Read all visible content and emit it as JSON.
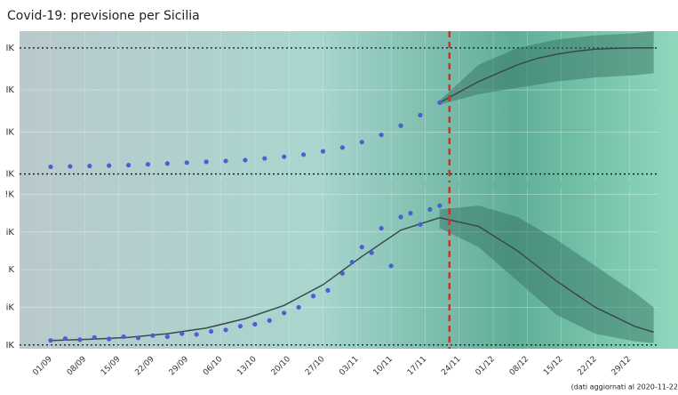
{
  "chart_data": [
    {
      "type": "scatter",
      "title": "Covid-19: previsione per Sicilia",
      "xlim": [
        -6.4,
        124.8
      ],
      "ylim": [
        -0.2,
        3.4
      ],
      "yticks": [
        {
          "value": 0,
          "label": "IK"
        },
        {
          "value": 1,
          "label": "IK"
        },
        {
          "value": 2,
          "label": "IK"
        },
        {
          "value": 3,
          "label": "IK"
        }
      ],
      "points": {
        "color": "#4a5fd0",
        "x": [
          0,
          4,
          8,
          12,
          16,
          20,
          24,
          28,
          32,
          36,
          40,
          44,
          48,
          52,
          56,
          60,
          64,
          68,
          72,
          76,
          80
        ],
        "values": [
          0.17,
          0.18,
          0.19,
          0.2,
          0.21,
          0.23,
          0.25,
          0.27,
          0.29,
          0.31,
          0.33,
          0.37,
          0.41,
          0.46,
          0.54,
          0.63,
          0.76,
          0.93,
          1.15,
          1.4,
          1.7
        ]
      },
      "fit": {
        "color": "#3a4a4a",
        "x": [
          80,
          84,
          88,
          92,
          96,
          100,
          104,
          108,
          112,
          116,
          120,
          124
        ],
        "values": [
          1.7,
          1.95,
          2.2,
          2.4,
          2.6,
          2.75,
          2.85,
          2.92,
          2.97,
          2.99,
          3.0,
          3.0
        ]
      },
      "band": {
        "color": "#2f6b5a",
        "x": [
          80,
          88,
          96,
          104,
          112,
          120,
          124
        ],
        "lower": [
          1.65,
          1.9,
          2.05,
          2.2,
          2.3,
          2.35,
          2.4
        ],
        "upper": [
          1.75,
          2.6,
          3.0,
          3.2,
          3.3,
          3.35,
          3.4
        ]
      },
      "forecast_start": 82
    },
    {
      "type": "scatter",
      "xlim": [
        -6.4,
        124.8
      ],
      "ylim": [
        -0.1,
        4.2
      ],
      "xticks": [
        {
          "value": 0,
          "label": "01/09"
        },
        {
          "value": 7,
          "label": "08/09"
        },
        {
          "value": 14,
          "label": "15/09"
        },
        {
          "value": 21,
          "label": "22/09"
        },
        {
          "value": 28,
          "label": "29/09"
        },
        {
          "value": 35,
          "label": "06/10"
        },
        {
          "value": 42,
          "label": "13/10"
        },
        {
          "value": 49,
          "label": "20/10"
        },
        {
          "value": 56,
          "label": "27/10"
        },
        {
          "value": 63,
          "label": "03/11"
        },
        {
          "value": 70,
          "label": "10/11"
        },
        {
          "value": 77,
          "label": "17/11"
        },
        {
          "value": 84,
          "label": "24/11"
        },
        {
          "value": 91,
          "label": "01/12"
        },
        {
          "value": 98,
          "label": "08/12"
        },
        {
          "value": 105,
          "label": "15/12"
        },
        {
          "value": 112,
          "label": "22/12"
        },
        {
          "value": 119,
          "label": "29/12"
        }
      ],
      "yticks": [
        {
          "value": 0,
          "label": "IK"
        },
        {
          "value": 1,
          "label": "iK"
        },
        {
          "value": 2,
          "label": "K"
        },
        {
          "value": 3,
          "label": "iK"
        },
        {
          "value": 4,
          "label": "!K"
        }
      ],
      "points": {
        "color": "#4a5fd0",
        "x": [
          0,
          3,
          6,
          9,
          12,
          15,
          18,
          21,
          24,
          27,
          30,
          33,
          36,
          39,
          42,
          45,
          48,
          51,
          54,
          57,
          60,
          62,
          64,
          66,
          68,
          70,
          72,
          74,
          76,
          78,
          80
        ],
        "values": [
          0.12,
          0.17,
          0.14,
          0.2,
          0.16,
          0.22,
          0.19,
          0.25,
          0.22,
          0.3,
          0.28,
          0.36,
          0.4,
          0.5,
          0.55,
          0.65,
          0.85,
          1.0,
          1.3,
          1.45,
          1.9,
          2.2,
          2.6,
          2.45,
          3.1,
          2.1,
          3.4,
          3.5,
          3.2,
          3.6,
          3.7
        ]
      },
      "fit": {
        "color": "#3a4a4a",
        "x": [
          0,
          8,
          16,
          24,
          32,
          40,
          48,
          56,
          64,
          72,
          80,
          88,
          96,
          104,
          112,
          120,
          124
        ],
        "values": [
          0.12,
          0.15,
          0.2,
          0.3,
          0.45,
          0.7,
          1.05,
          1.6,
          2.35,
          3.05,
          3.38,
          3.15,
          2.5,
          1.7,
          1.0,
          0.5,
          0.34
        ]
      },
      "band": {
        "color": "#2f6b5a",
        "x": [
          80,
          88,
          96,
          104,
          112,
          120,
          124
        ],
        "lower": [
          3.1,
          2.6,
          1.7,
          0.8,
          0.3,
          0.1,
          0.05
        ],
        "upper": [
          3.6,
          3.7,
          3.4,
          2.8,
          2.1,
          1.4,
          1.0
        ]
      },
      "forecast_start": 82,
      "note": "(dati aggiornati al 2020-11-22"
    }
  ]
}
